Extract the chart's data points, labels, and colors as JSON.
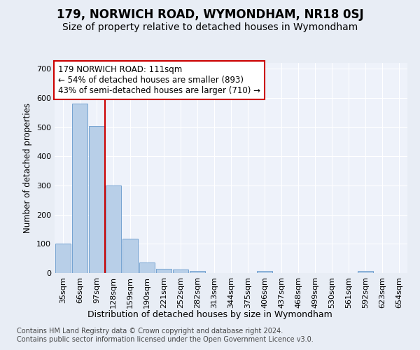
{
  "title": "179, NORWICH ROAD, WYMONDHAM, NR18 0SJ",
  "subtitle": "Size of property relative to detached houses in Wymondham",
  "xlabel": "Distribution of detached houses by size in Wymondham",
  "ylabel": "Number of detached properties",
  "categories": [
    "35sqm",
    "66sqm",
    "97sqm",
    "128sqm",
    "159sqm",
    "190sqm",
    "221sqm",
    "252sqm",
    "282sqm",
    "313sqm",
    "344sqm",
    "375sqm",
    "406sqm",
    "437sqm",
    "468sqm",
    "499sqm",
    "530sqm",
    "561sqm",
    "592sqm",
    "623sqm",
    "654sqm"
  ],
  "values": [
    100,
    580,
    505,
    300,
    118,
    37,
    15,
    12,
    7,
    0,
    0,
    0,
    8,
    0,
    0,
    0,
    0,
    0,
    7,
    0,
    0
  ],
  "bar_color": "#b8cfe8",
  "bar_edge_color": "#6699cc",
  "red_line_x": 2.5,
  "highlight_line_color": "#cc0000",
  "annotation_text": "179 NORWICH ROAD: 111sqm\n← 54% of detached houses are smaller (893)\n43% of semi-detached houses are larger (710) →",
  "annotation_box_color": "#ffffff",
  "annotation_box_edge_color": "#cc0000",
  "ylim": [
    0,
    720
  ],
  "yticks": [
    0,
    100,
    200,
    300,
    400,
    500,
    600,
    700
  ],
  "bg_color": "#e8edf5",
  "plot_bg_color": "#eef2fa",
  "grid_color": "#ffffff",
  "footer_text": "Contains HM Land Registry data © Crown copyright and database right 2024.\nContains public sector information licensed under the Open Government Licence v3.0.",
  "title_fontsize": 12,
  "subtitle_fontsize": 10,
  "xlabel_fontsize": 9,
  "ylabel_fontsize": 8.5,
  "tick_fontsize": 8,
  "annotation_fontsize": 8.5,
  "footer_fontsize": 7
}
